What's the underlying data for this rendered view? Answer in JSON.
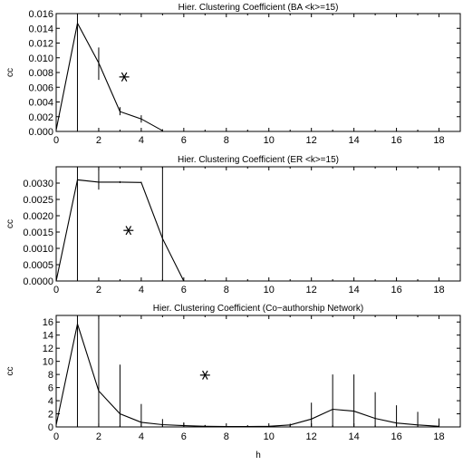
{
  "chart_data": [
    {
      "type": "line",
      "title": "Hier. Clustering Coefficient (BA <k>=15)",
      "xlabel": "",
      "ylabel": "cc",
      "xlim": [
        0,
        19
      ],
      "ylim": [
        0,
        0.016
      ],
      "xticks": [
        0,
        2,
        4,
        6,
        8,
        10,
        12,
        14,
        16,
        18
      ],
      "yticks": [
        0,
        0.002,
        0.004,
        0.006,
        0.008,
        0.01,
        0.012,
        0.014,
        0.016
      ],
      "ytick_labels": [
        "0.000",
        "0.002",
        "0.004",
        "0.006",
        "0.008",
        "0.010",
        "0.012",
        "0.014",
        "0.016"
      ],
      "xtick_labels": [
        "0",
        "2",
        "4",
        "6",
        "8",
        "10",
        "12",
        "14",
        "16",
        "18"
      ],
      "x": [
        0,
        1,
        2,
        3,
        4,
        5
      ],
      "y": [
        0.0002,
        0.0147,
        0.0093,
        0.0027,
        0.0017,
        0.0001
      ],
      "err": [
        [
          0,
          0
        ],
        [
          0,
          0.016
        ],
        [
          0.007,
          0.0114
        ],
        [
          0.0022,
          0.0033
        ],
        [
          0.0012,
          0.0022
        ],
        [
          0,
          0.0003
        ]
      ],
      "marker": {
        "x": 3.2,
        "y": 0.0074
      }
    },
    {
      "type": "line",
      "title": "Hier. Clustering Coefficient (ER <k>=15)",
      "xlabel": "",
      "ylabel": "cc",
      "xlim": [
        0,
        19
      ],
      "ylim": [
        0,
        0.0035
      ],
      "xticks": [
        0,
        2,
        4,
        6,
        8,
        10,
        12,
        14,
        16,
        18
      ],
      "yticks": [
        0,
        0.0005,
        0.001,
        0.0015,
        0.002,
        0.0025,
        0.003
      ],
      "ytick_labels": [
        "0.0000",
        "0.0005",
        "0.0010",
        "0.0015",
        "0.0020",
        "0.0025",
        "0.0030"
      ],
      "xtick_labels": [
        "0",
        "2",
        "4",
        "6",
        "8",
        "10",
        "12",
        "14",
        "16",
        "18"
      ],
      "x": [
        0,
        1,
        2,
        3,
        4,
        5,
        6
      ],
      "y": [
        0.0,
        0.0031,
        0.00303,
        0.00303,
        0.00302,
        0.0013,
        0.0
      ],
      "err": [
        [
          0,
          0
        ],
        [
          0,
          0.0035
        ],
        [
          0.0028,
          0.0035
        ],
        [
          0.003,
          0.00306
        ],
        [
          0.003,
          0.00304
        ],
        [
          0,
          0.0035
        ],
        [
          0,
          0
        ]
      ],
      "marker": {
        "x": 3.4,
        "y": 0.00155
      }
    },
    {
      "type": "line",
      "title": "Hier. Clustering Coefficient (Co−authorship Network)",
      "xlabel": "h",
      "ylabel": "cc",
      "xlim": [
        0,
        19
      ],
      "ylim": [
        0,
        17
      ],
      "xticks": [
        0,
        2,
        4,
        6,
        8,
        10,
        12,
        14,
        16,
        18
      ],
      "yticks": [
        0,
        2,
        4,
        6,
        8,
        10,
        12,
        14,
        16
      ],
      "ytick_labels": [
        "0",
        "2",
        "4",
        "6",
        "8",
        "10",
        "12",
        "14",
        "16"
      ],
      "xtick_labels": [
        "0",
        "2",
        "4",
        "6",
        "8",
        "10",
        "12",
        "14",
        "16",
        "18"
      ],
      "x": [
        0,
        1,
        2,
        3,
        4,
        5,
        6,
        7,
        8,
        9,
        10,
        11,
        12,
        13,
        14,
        15,
        16,
        17,
        18
      ],
      "y": [
        0.3,
        15.7,
        5.5,
        2.0,
        0.7,
        0.35,
        0.2,
        0.1,
        0.05,
        0.05,
        0.1,
        0.3,
        1.2,
        2.7,
        2.4,
        1.3,
        0.6,
        0.3,
        0.1
      ],
      "err": [
        [
          0,
          0
        ],
        [
          0,
          17
        ],
        [
          0,
          17
        ],
        [
          0,
          9.5
        ],
        [
          0,
          3.5
        ],
        [
          0,
          1.2
        ],
        [
          0,
          0.7
        ],
        [
          0,
          0.3
        ],
        [
          0,
          0.1
        ],
        [
          0,
          0.1
        ],
        [
          0,
          0.2
        ],
        [
          0,
          0.5
        ],
        [
          0,
          3.7
        ],
        [
          0,
          8.0
        ],
        [
          0,
          8.0
        ],
        [
          0,
          5.3
        ],
        [
          0,
          3.3
        ],
        [
          0,
          2.3
        ],
        [
          0,
          1.3
        ]
      ],
      "marker": {
        "x": 7.0,
        "y": 7.9
      }
    }
  ]
}
